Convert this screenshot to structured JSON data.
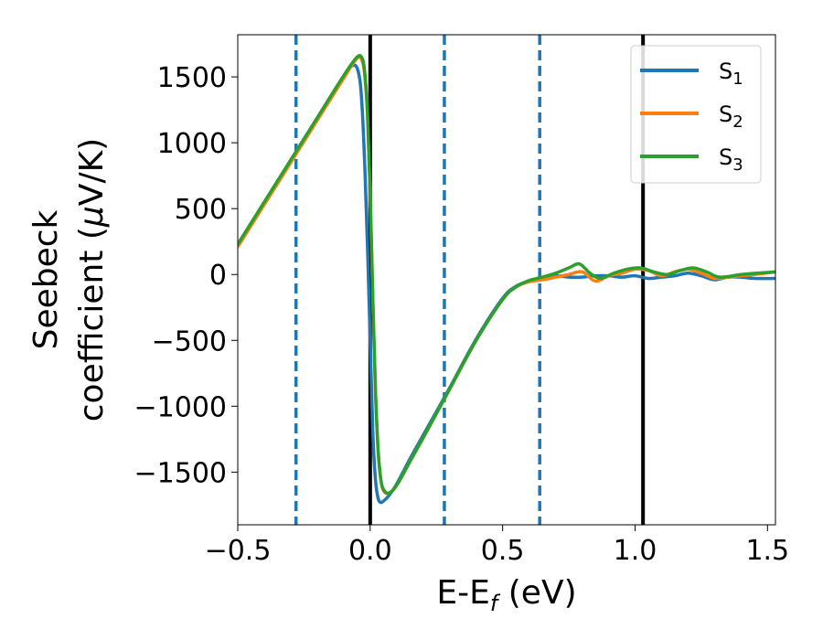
{
  "chart_data": {
    "type": "line",
    "xlabel": {
      "main": "E-E",
      "sub": "f",
      "unit": " (eV)"
    },
    "ylabel": {
      "line1": "Seebeck",
      "line2_pre": "coefficient  (",
      "mu": "μ",
      "line2_post": "V/K)"
    },
    "xlim": [
      -0.5,
      1.53
    ],
    "ylim": [
      -1900,
      1820
    ],
    "xticks": [
      -0.5,
      0.0,
      0.5,
      1.0,
      1.5
    ],
    "xtick_labels": [
      "−0.5",
      "0.0",
      "0.5",
      "1.0",
      "1.5"
    ],
    "yticks": [
      -1500,
      -1000,
      -500,
      0,
      500,
      1000,
      1500
    ],
    "ytick_labels": [
      "−1500",
      "−1000",
      "−500",
      "0",
      "500",
      "1000",
      "1500"
    ],
    "grid": false,
    "legend_position": "top-right",
    "vlines_dashed": {
      "x": [
        -0.28,
        0.28,
        0.64
      ],
      "color": "#1f77b4"
    },
    "vlines_solid": {
      "x": [
        0.0,
        1.03
      ],
      "color": "#000000"
    },
    "series": [
      {
        "name": "S",
        "sub": "1",
        "color": "#1f77b4",
        "x": [
          -0.5,
          -0.4,
          -0.3,
          -0.2,
          -0.1,
          -0.06,
          -0.04,
          -0.03,
          -0.02,
          -0.01,
          0.0,
          0.01,
          0.02,
          0.03,
          0.04,
          0.05,
          0.07,
          0.1,
          0.15,
          0.2,
          0.3,
          0.4,
          0.5,
          0.55,
          0.6,
          0.65,
          0.7,
          0.75,
          0.8,
          0.85,
          0.9,
          0.95,
          1.0,
          1.05,
          1.1,
          1.15,
          1.2,
          1.25,
          1.3,
          1.35,
          1.4,
          1.45,
          1.53
        ],
        "y": [
          220,
          540,
          860,
          1180,
          1500,
          1590,
          1490,
          1250,
          800,
          200,
          -500,
          -1200,
          -1560,
          -1700,
          -1730,
          -1720,
          -1680,
          -1590,
          -1400,
          -1220,
          -860,
          -490,
          -180,
          -90,
          -50,
          -30,
          -10,
          -20,
          -20,
          -10,
          -10,
          -20,
          -10,
          -30,
          -20,
          -10,
          10,
          -10,
          -40,
          -20,
          -20,
          -30,
          -30
        ]
      },
      {
        "name": "S",
        "sub": "2",
        "color": "#ff7f0e",
        "x": [
          -0.5,
          -0.4,
          -0.3,
          -0.2,
          -0.1,
          -0.05,
          -0.03,
          -0.02,
          -0.01,
          0.0,
          0.01,
          0.02,
          0.03,
          0.04,
          0.05,
          0.07,
          0.1,
          0.15,
          0.2,
          0.3,
          0.4,
          0.5,
          0.55,
          0.6,
          0.65,
          0.7,
          0.75,
          0.8,
          0.85,
          0.9,
          0.95,
          1.0,
          1.05,
          1.1,
          1.15,
          1.2,
          1.25,
          1.3,
          1.35,
          1.4,
          1.45,
          1.53
        ],
        "y": [
          210,
          530,
          850,
          1170,
          1490,
          1640,
          1620,
          1500,
          1200,
          600,
          -200,
          -900,
          -1350,
          -1560,
          -1640,
          -1660,
          -1600,
          -1420,
          -1240,
          -870,
          -500,
          -190,
          -95,
          -55,
          -40,
          -20,
          0,
          20,
          -50,
          -10,
          10,
          40,
          30,
          -10,
          20,
          40,
          10,
          -30,
          -20,
          -10,
          0,
          20
        ]
      },
      {
        "name": "S",
        "sub": "3",
        "color": "#2ca02c",
        "x": [
          -0.5,
          -0.4,
          -0.3,
          -0.2,
          -0.1,
          -0.05,
          -0.03,
          -0.02,
          -0.01,
          0.0,
          0.01,
          0.02,
          0.03,
          0.04,
          0.05,
          0.07,
          0.1,
          0.15,
          0.2,
          0.3,
          0.4,
          0.5,
          0.55,
          0.6,
          0.65,
          0.7,
          0.75,
          0.79,
          0.83,
          0.87,
          0.92,
          0.97,
          1.02,
          1.07,
          1.12,
          1.17,
          1.22,
          1.27,
          1.32,
          1.4,
          1.46,
          1.53
        ],
        "y": [
          230,
          550,
          870,
          1190,
          1510,
          1650,
          1640,
          1520,
          1220,
          620,
          -180,
          -880,
          -1330,
          -1550,
          -1630,
          -1660,
          -1600,
          -1420,
          -1240,
          -870,
          -500,
          -190,
          -95,
          -45,
          -20,
          10,
          50,
          80,
          10,
          -30,
          10,
          40,
          50,
          20,
          0,
          30,
          50,
          20,
          -20,
          0,
          10,
          20
        ]
      }
    ]
  }
}
